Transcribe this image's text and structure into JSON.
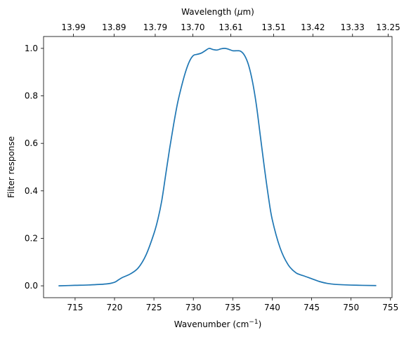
{
  "chart_data": {
    "type": "line",
    "xlabel": "Wavenumber (cm",
    "xlabel_exponent": "−1",
    "xlabel_close": ")",
    "ylabel": "Filter response",
    "top_xlabel": "Wavelength (",
    "top_xlabel_mu": "μ",
    "top_xlabel_unit": "m)",
    "xlim": [
      711,
      755.2
    ],
    "ylim": [
      -0.05,
      1.05
    ],
    "grid": false,
    "legend": "none",
    "line_color": "#1f77b4",
    "x_ticks": [
      {
        "value": 715,
        "label": "715"
      },
      {
        "value": 720,
        "label": "720"
      },
      {
        "value": 725,
        "label": "725"
      },
      {
        "value": 730,
        "label": "730"
      },
      {
        "value": 735,
        "label": "735"
      },
      {
        "value": 740,
        "label": "740"
      },
      {
        "value": 745,
        "label": "745"
      },
      {
        "value": 750,
        "label": "750"
      },
      {
        "value": 755,
        "label": "755"
      }
    ],
    "y_ticks": [
      {
        "value": 0.0,
        "label": "0.0"
      },
      {
        "value": 0.2,
        "label": "0.2"
      },
      {
        "value": 0.4,
        "label": "0.4"
      },
      {
        "value": 0.6,
        "label": "0.6"
      },
      {
        "value": 0.8,
        "label": "0.8"
      },
      {
        "value": 1.0,
        "label": "1.0"
      }
    ],
    "top_ticks": [
      {
        "value": 13.99,
        "label": "13.99"
      },
      {
        "value": 13.89,
        "label": "13.89"
      },
      {
        "value": 13.79,
        "label": "13.79"
      },
      {
        "value": 13.7,
        "label": "13.70"
      },
      {
        "value": 13.61,
        "label": "13.61"
      },
      {
        "value": 13.51,
        "label": "13.51"
      },
      {
        "value": 13.42,
        "label": "13.42"
      },
      {
        "value": 13.33,
        "label": "13.33"
      },
      {
        "value": 13.25,
        "label": "13.25"
      }
    ],
    "series": [
      {
        "x": [
          712.9,
          715,
          717,
          719,
          720,
          720.5,
          721,
          722,
          723,
          724,
          725,
          725.5,
          726,
          726.5,
          727,
          727.5,
          728,
          728.5,
          729,
          729.5,
          730,
          730.5,
          731,
          731.5,
          732,
          732.5,
          733,
          733.5,
          734,
          734.5,
          735,
          735.5,
          736,
          736.5,
          737,
          737.5,
          738,
          738.5,
          739,
          739.5,
          740,
          741,
          742,
          743,
          744,
          745,
          746,
          747,
          748,
          750,
          753.2
        ],
        "y": [
          0.0,
          0.002,
          0.004,
          0.008,
          0.015,
          0.025,
          0.035,
          0.05,
          0.075,
          0.13,
          0.22,
          0.28,
          0.36,
          0.47,
          0.58,
          0.68,
          0.77,
          0.84,
          0.9,
          0.945,
          0.97,
          0.975,
          0.98,
          0.99,
          1.0,
          0.995,
          0.993,
          0.998,
          1.0,
          0.996,
          0.99,
          0.99,
          0.988,
          0.97,
          0.93,
          0.86,
          0.76,
          0.63,
          0.5,
          0.38,
          0.28,
          0.16,
          0.09,
          0.055,
          0.042,
          0.03,
          0.018,
          0.01,
          0.006,
          0.003,
          0.001
        ]
      }
    ]
  }
}
